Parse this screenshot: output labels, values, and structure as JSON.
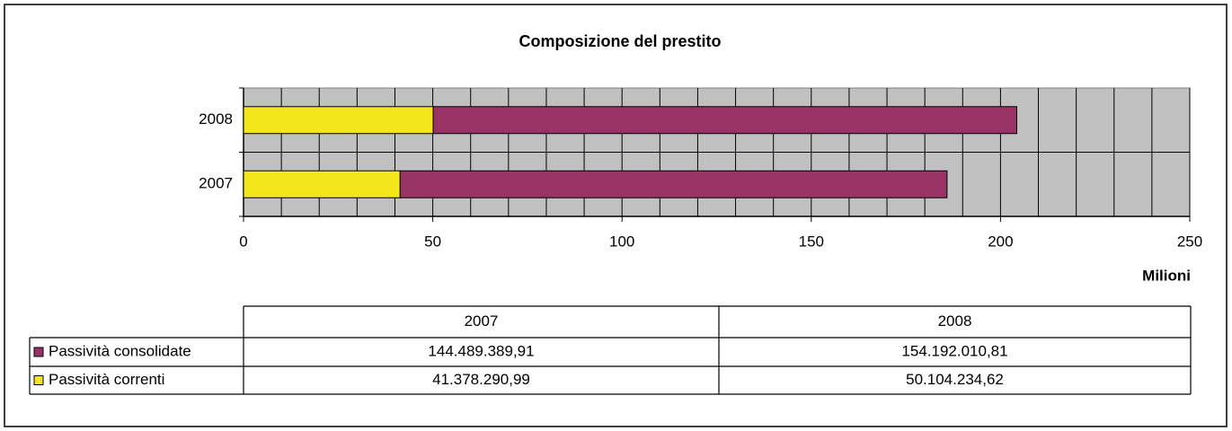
{
  "chart_data": {
    "type": "stacked_barh",
    "title": "Composizione del prestito",
    "x_label": "Milioni",
    "categories": [
      "2007",
      "2008"
    ],
    "series": [
      {
        "name": "Passività consolidate",
        "color": "#993366",
        "values": [
          144.48938991,
          154.19201081
        ],
        "value_labels": [
          "144.489.389,91",
          "154.192.010,81"
        ]
      },
      {
        "name": "Passività correnti",
        "color": "#f3e61b",
        "values": [
          41.37829099,
          50.10423462
        ],
        "value_labels": [
          "41.378.290,99",
          "50.104.234,62"
        ]
      }
    ],
    "xlim": [
      0,
      250
    ],
    "xticks": [
      0,
      50,
      100,
      150,
      200,
      250
    ],
    "x_minor_ticks": [
      0,
      10,
      20,
      30,
      40,
      50,
      60,
      70,
      80,
      90,
      100,
      110,
      120,
      130,
      140,
      150,
      160,
      170,
      180,
      190,
      200,
      210,
      220,
      230,
      240,
      250
    ],
    "grid": true,
    "data_table": true
  }
}
